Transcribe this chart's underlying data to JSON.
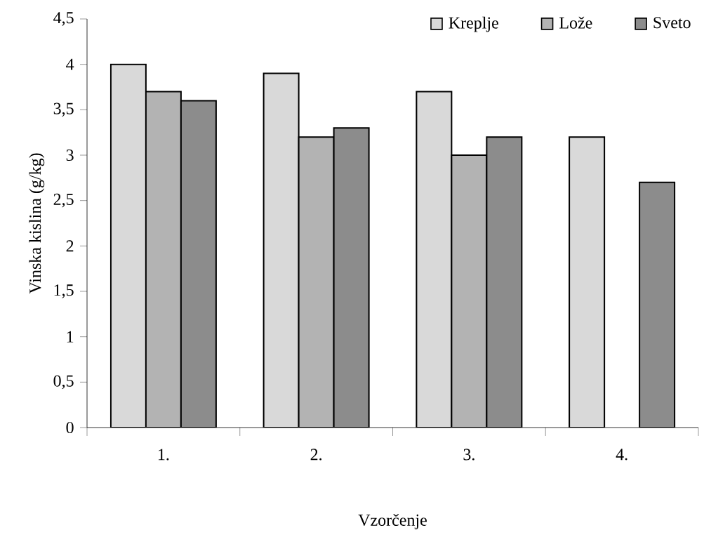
{
  "chart_data": {
    "type": "bar",
    "xlabel": "Vzorčenje",
    "ylabel": "Vinska kislina (g/kg)",
    "categories": [
      "1.",
      "2.",
      "3.",
      "4."
    ],
    "series": [
      {
        "name": "Kreplje",
        "color": "#d9d9d9",
        "values": [
          4.0,
          3.9,
          3.7,
          3.2
        ]
      },
      {
        "name": "Lože",
        "color": "#b3b3b3",
        "values": [
          3.7,
          3.2,
          3.0,
          null
        ]
      },
      {
        "name": "Sveto",
        "color": "#8c8c8c",
        "values": [
          3.6,
          3.3,
          3.2,
          2.7
        ]
      }
    ],
    "ylim": [
      0,
      4.5
    ],
    "yticks": [
      0,
      {
        "value": 0.5,
        "label": "0,5"
      },
      1,
      {
        "value": 1.5,
        "label": "1,5"
      },
      2,
      {
        "value": 2.5,
        "label": "2,5"
      },
      3,
      {
        "value": 3.5,
        "label": "3,5"
      },
      4,
      {
        "value": 4.5,
        "label": "4,5"
      }
    ],
    "legend": "top right"
  }
}
